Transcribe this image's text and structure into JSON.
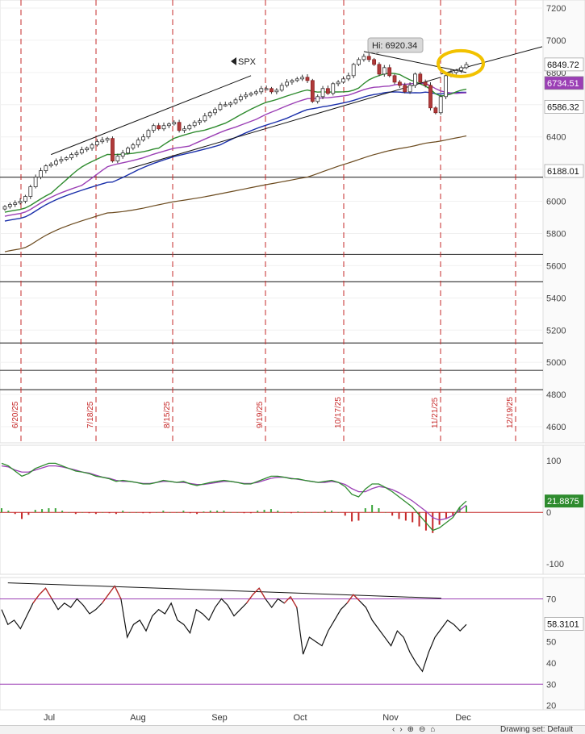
{
  "chart_data": [
    {
      "type": "candlestick",
      "symbol": "SPX",
      "ylim": [
        4500,
        7250
      ],
      "y_ticks": [
        "7200",
        "7000",
        "6800",
        "6600",
        "6400",
        "6200",
        "6000",
        "5800",
        "5600",
        "5400",
        "5200",
        "5000",
        "4800",
        "4600"
      ],
      "x_month_labels": [
        "Jul",
        "Aug",
        "Sep",
        "Oct",
        "Nov",
        "Dec"
      ],
      "date_markers": [
        "6/20/25",
        "7/18/25",
        "8/15/25",
        "9/19/25",
        "10/17/25",
        "11/21/25",
        "12/19/25"
      ],
      "high_annotation": "Hi: 6920.34",
      "last_price": "6849.72",
      "indicator_values": {
        "ma_20": "6734.51",
        "ma_50": "6586.32",
        "ma_200": "6188.01"
      },
      "horizontal_levels": [
        6150,
        5670,
        5500,
        5120,
        4950,
        4830
      ],
      "close_series": [
        5967,
        5980,
        5990,
        6000,
        6030,
        6090,
        6150,
        6190,
        6220,
        6230,
        6250,
        6260,
        6270,
        6290,
        6300,
        6320,
        6330,
        6350,
        6370,
        6380,
        6390,
        6250,
        6280,
        6300,
        6330,
        6350,
        6380,
        6400,
        6440,
        6470,
        6450,
        6470,
        6480,
        6490,
        6440,
        6450,
        6470,
        6490,
        6500,
        6530,
        6550,
        6570,
        6600,
        6600,
        6610,
        6630,
        6650,
        6660,
        6670,
        6680,
        6700,
        6700,
        6680,
        6690,
        6720,
        6740,
        6750,
        6760,
        6770,
        6750,
        6620,
        6650,
        6700,
        6670,
        6730,
        6740,
        6760,
        6780,
        6850,
        6880,
        6900,
        6880,
        6850,
        6790,
        6830,
        6780,
        6740,
        6720,
        6680,
        6720,
        6790,
        6740,
        6720,
        6580,
        6550,
        6650,
        6780,
        6800,
        6812,
        6830,
        6849
      ]
    },
    {
      "type": "line",
      "panel": "MACD",
      "ylim": [
        -120,
        130
      ],
      "y_ticks": [
        "100",
        "0",
        "-100"
      ],
      "last_value": "21.8875",
      "macd": [
        95,
        90,
        80,
        70,
        75,
        85,
        90,
        95,
        95,
        90,
        85,
        80,
        78,
        75,
        70,
        68,
        65,
        60,
        62,
        60,
        58,
        55,
        55,
        58,
        62,
        60,
        58,
        60,
        55,
        52,
        55,
        58,
        60,
        62,
        60,
        58,
        55,
        55,
        60,
        65,
        70,
        70,
        68,
        65,
        65,
        62,
        60,
        58,
        60,
        62,
        58,
        50,
        35,
        30,
        45,
        55,
        55,
        48,
        40,
        30,
        20,
        10,
        -5,
        -20,
        -35,
        -30,
        -20,
        -10,
        10,
        21.9
      ],
      "signal": [
        90,
        88,
        82,
        78,
        78,
        82,
        86,
        90,
        90,
        88,
        85,
        82,
        78,
        76,
        72,
        68,
        66,
        62,
        60,
        60,
        58,
        56,
        56,
        58,
        60,
        60,
        58,
        58,
        56,
        54,
        54,
        56,
        58,
        60,
        60,
        58,
        56,
        56,
        58,
        62,
        66,
        68,
        68,
        66,
        64,
        62,
        60,
        58,
        58,
        60,
        58,
        54,
        46,
        40,
        40,
        46,
        50,
        48,
        44,
        38,
        30,
        22,
        12,
        2,
        -10,
        -15,
        -12,
        -6,
        4,
        14
      ]
    },
    {
      "type": "line",
      "panel": "RSI",
      "ylim": [
        18,
        80
      ],
      "y_ticks": [
        "70",
        "60",
        "50",
        "40",
        "30",
        "20"
      ],
      "overbought": 70,
      "oversold": 30,
      "last_value": "58.3101",
      "rsi": [
        65,
        58,
        60,
        56,
        62,
        68,
        72,
        75,
        70,
        65,
        68,
        66,
        70,
        67,
        63,
        65,
        68,
        72,
        76,
        70,
        52,
        58,
        60,
        55,
        62,
        65,
        63,
        68,
        60,
        58,
        54,
        65,
        63,
        60,
        66,
        70,
        67,
        62,
        65,
        68,
        72,
        75,
        70,
        66,
        70,
        68,
        71,
        66,
        44,
        52,
        50,
        48,
        55,
        60,
        65,
        68,
        72,
        69,
        66,
        60,
        56,
        52,
        48,
        55,
        52,
        45,
        40,
        36,
        45,
        52,
        56,
        60,
        58,
        55,
        58
      ]
    }
  ],
  "toolbar": {
    "drawing_set": "Drawing set: Default"
  }
}
